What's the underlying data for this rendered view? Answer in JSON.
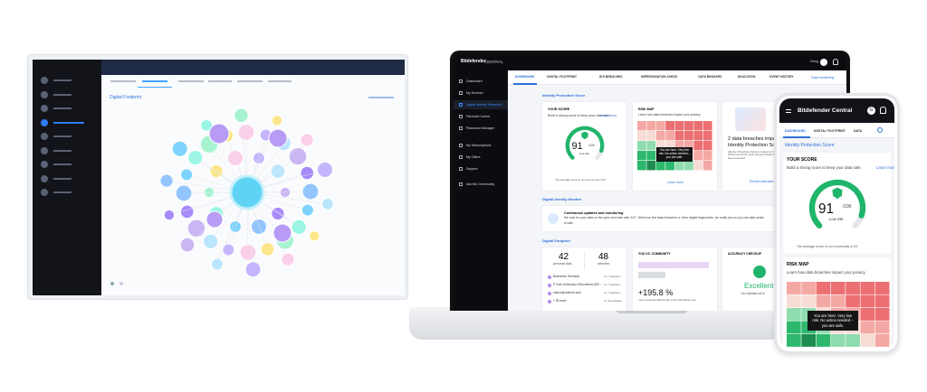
{
  "tablet": {
    "title": "Digital Footprint"
  },
  "laptop": {
    "brand": "Bitdefender",
    "brand_suffix": "CENTRAL",
    "user": "Greg",
    "sidebar": [
      "Dashboard",
      "My Devices",
      "Digital Identity Protection",
      "Parental Control",
      "Password Manager",
      "My Subscriptions",
      "My Offers",
      "Support",
      "Ask the Community"
    ],
    "tabs": [
      "DASHBOARD",
      "DIGITAL FOOTPRINT",
      "ID'S BREACHES",
      "IMPERSONATION CHECK",
      "DATA BROKERS",
      "EDUCATION",
      "EVENT HISTORY"
    ],
    "monitor_link": "Data monitoring",
    "score_heading": "Identity Protection Score",
    "score_card": {
      "title": "YOUR SCORE",
      "text": "Build a strong score to keep your data safe.",
      "link": "Learn more",
      "score": "91",
      "max": "/100",
      "risk": "Low risk",
      "average": "The average score in our community is 53"
    },
    "risk_card": {
      "title": "RISK MAP",
      "text": "Learn how data breaches impact your privacy.",
      "tooltip": "You are here. Very low risk. No action needed – you are safe.",
      "link": "Learn more"
    },
    "breach_card": {
      "title": "2 data breaches impa",
      "subtitle": "Identity Protection Sc",
      "text": "Identity Protection Score is based on breach history and how much personal data have been exposed.",
      "link": "Review data brea"
    },
    "monitor": {
      "heading": "Digital Identity Monitor",
      "title": "Continuous updates and monitoring",
      "text": "We look for your data on the open and dark web 24/7. When we find data breaches or other digital fingerprints, we notify you so you can take action",
      "text2": "is safe."
    },
    "footprint": {
      "heading": "Digital Footprint",
      "personal_count": "42",
      "personal_label": "personal data",
      "websites_count": "48",
      "websites_label": "websites",
      "items": [
        {
          "label": "Bucharest, Romania",
          "count": "on 7 websites"
        },
        {
          "label": "IT from University of Bucharest (200...",
          "count": "on 7 websites"
        },
        {
          "label": "marius@rndlevel.com",
          "count": "on 7 websites"
        },
        {
          "label": "+ 39 more",
          "count": "on 40 websites"
        }
      ]
    },
    "community": {
      "title": "YOU VS. COMMUNITY",
      "value": "+195.8 %",
      "text": "more personal data found on the web about you"
    },
    "accuracy": {
      "title": "ACCURACY CHECKUP",
      "status": "Excellent",
      "text": "You validated all th"
    }
  },
  "phone": {
    "brand": "Bitdefender Central",
    "avatar": "G",
    "tabs": [
      "DASHBOARD",
      "DIGITAL FOOTPRINT",
      "DATA"
    ],
    "score_heading": "Identity Protection Score",
    "score_card": {
      "title": "YOUR SCORE",
      "text": "Build a strong score to keep your data safe.",
      "link": "Learn more",
      "score": "91",
      "max": "/100",
      "risk": "Low risk",
      "average": "The average score in our community is 53"
    },
    "risk_card": {
      "title": "RISK MAP",
      "text": "Learn how data breaches impact your privacy.",
      "tooltip": "You are here. Very low risk. No action needed – you are safe."
    }
  }
}
